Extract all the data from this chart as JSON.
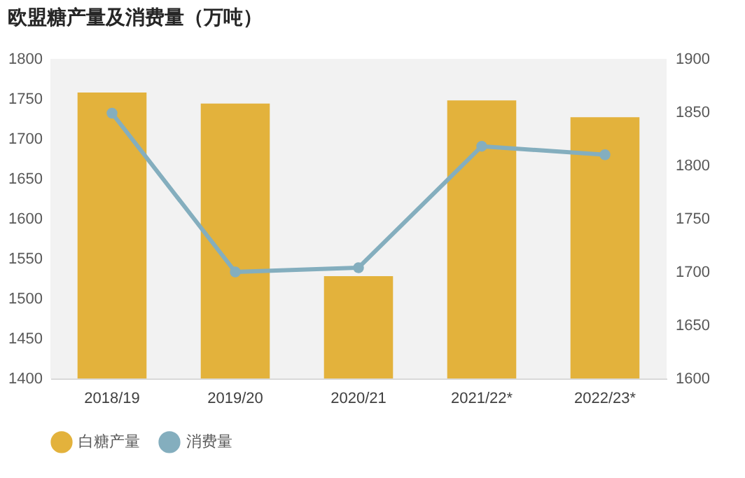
{
  "chart_data": {
    "type": "bar",
    "title": "欧盟糖产量及消费量（万吨）",
    "categories": [
      "2018/19",
      "2019/20",
      "2020/21",
      "2021/22*",
      "2022/23*"
    ],
    "series": [
      {
        "name": "白糖产量",
        "color": "#e3b23c",
        "values": [
          1758,
          1744,
          1528,
          1748,
          1727
        ]
      },
      {
        "name": "消费量",
        "type": "line",
        "axis": "y2",
        "color": "#84aebe",
        "values": [
          1849,
          1700,
          1704,
          1818,
          1810
        ]
      }
    ],
    "ylim": [
      1400,
      1800
    ],
    "yticks": [
      1400,
      1450,
      1500,
      1550,
      1600,
      1650,
      1700,
      1750,
      1800
    ],
    "y2lim": [
      1600,
      1900
    ],
    "y2ticks": [
      1600,
      1650,
      1700,
      1750,
      1800,
      1850,
      1900
    ],
    "legend": "bottom",
    "marker": "circle",
    "grid": false
  }
}
